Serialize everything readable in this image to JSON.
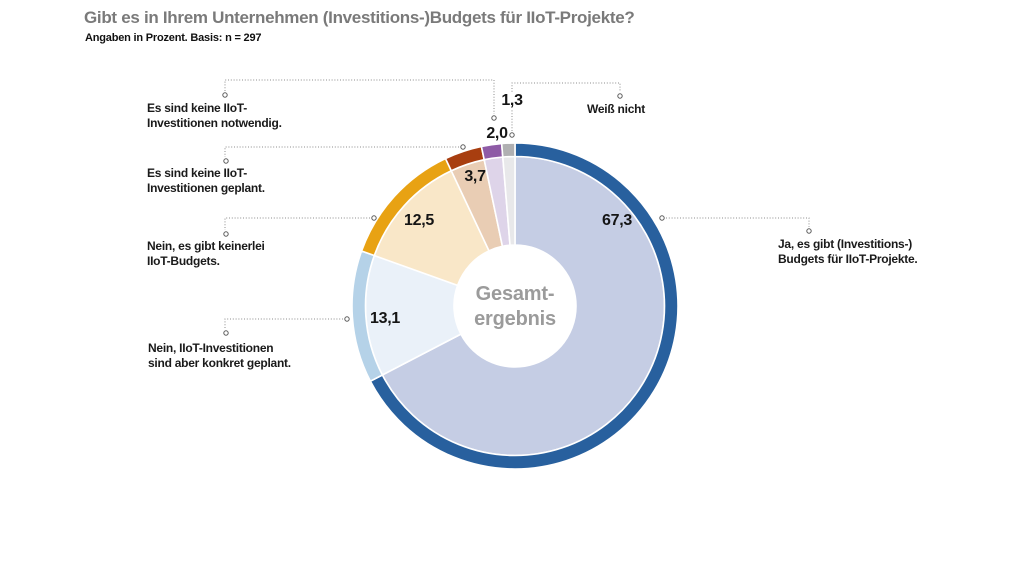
{
  "header": {
    "title": "Gibt es in Ihrem Unternehmen (Investitions-)Budgets für IIoT-Projekte?",
    "subtitle": "Angaben in Prozent. Basis: n = 297"
  },
  "chart_data": {
    "type": "pie",
    "subtype": "donut",
    "title": "Gibt es in Ihrem Unternehmen (Investitions-)Budgets für IIoT-Projekte?",
    "units": "Prozent",
    "basis_n": 297,
    "direction": "clockwise",
    "start_angle_deg": 0,
    "center_label": "Gesamt-\nergebnis",
    "center_label_color": "#9b9b9b",
    "slices": [
      {
        "name": "ja-budgets",
        "value": 67.3,
        "value_label": "67,3",
        "label": "Ja, es gibt (Investitions-)\nBudgets für IIoT-Projekte.",
        "ring_color": "#28609e",
        "fill_color": "#c5cde4"
      },
      {
        "name": "konkret-geplant",
        "value": 13.1,
        "value_label": "13,1",
        "label": "Nein, IIoT-Investitionen\nsind aber konkret geplant.",
        "ring_color": "#b5d2e8",
        "fill_color": "#eaf1f9"
      },
      {
        "name": "keinerlei-budgets",
        "value": 12.5,
        "value_label": "12,5",
        "label": "Nein, es gibt keinerlei\nIIoT-Budgets.",
        "ring_color": "#e8a213",
        "fill_color": "#f9e7c8"
      },
      {
        "name": "keine-geplant",
        "value": 3.7,
        "value_label": "3,7",
        "label": "Es sind keine IIoT-\nInvestitionen geplant.",
        "ring_color": "#a83e10",
        "fill_color": "#e9cdb4"
      },
      {
        "name": "keine-notwendig",
        "value": 2.0,
        "value_label": "2,0",
        "label": "Es sind keine IIoT-\nInvestitionen notwendig.",
        "ring_color": "#8e5ba6",
        "fill_color": "#ded4e9"
      },
      {
        "name": "weiss-nicht",
        "value": 1.3,
        "value_label": "1,3",
        "label": "Weiß nicht",
        "ring_color": "#b0b0b2",
        "fill_color": "#e8e8ea"
      }
    ]
  }
}
